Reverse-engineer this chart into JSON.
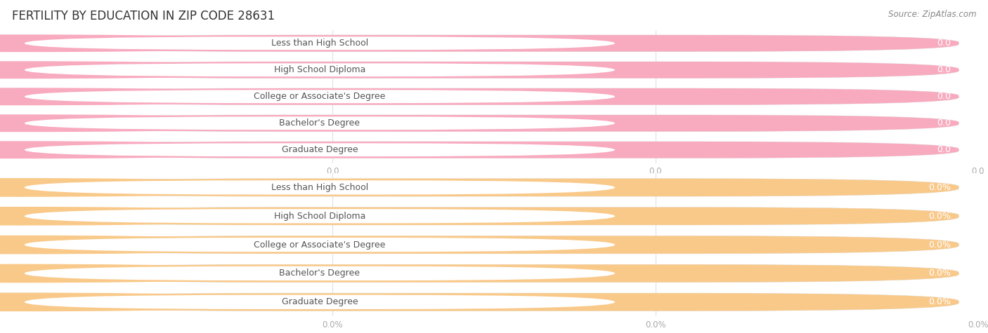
{
  "title": "FERTILITY BY EDUCATION IN ZIP CODE 28631",
  "source": "Source: ZipAtlas.com",
  "categories": [
    "Less than High School",
    "High School Diploma",
    "College or Associate's Degree",
    "Bachelor's Degree",
    "Graduate Degree"
  ],
  "top_values": [
    0.0,
    0.0,
    0.0,
    0.0,
    0.0
  ],
  "bottom_values": [
    0.0,
    0.0,
    0.0,
    0.0,
    0.0
  ],
  "top_bar_color": "#F8AABF",
  "bottom_bar_color": "#F9C98A",
  "top_value_label": "0.0",
  "bottom_value_label": "0.0%",
  "top_axis_ticks": [
    "0.0",
    "0.0",
    "0.0"
  ],
  "bottom_axis_ticks": [
    "0.0%",
    "0.0%",
    "0.0%"
  ],
  "background_color": "#ffffff",
  "bar_bg_color": "#f2f2f2",
  "bar_bg_outline_color": "#e0e0e0",
  "title_fontsize": 12,
  "label_fontsize": 9,
  "value_fontsize": 9,
  "source_fontsize": 8.5,
  "pill_label_bg": "#ffffff",
  "pill_label_text_color": "#555555",
  "value_text_color": "#ffffff",
  "axis_text_color": "#aaaaaa",
  "grid_color": "#e0e0e0"
}
